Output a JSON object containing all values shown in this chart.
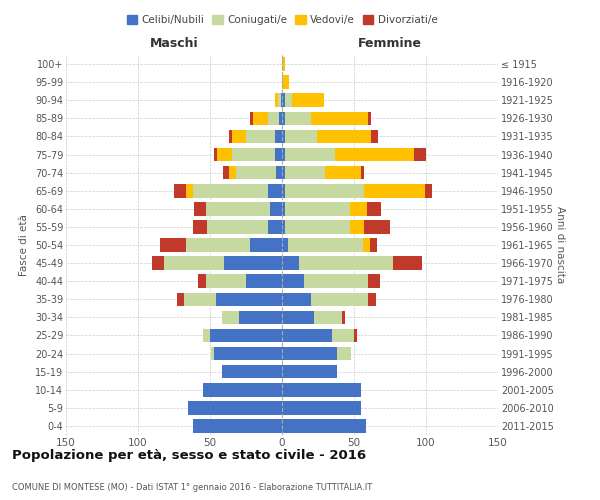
{
  "age_groups": [
    "0-4",
    "5-9",
    "10-14",
    "15-19",
    "20-24",
    "25-29",
    "30-34",
    "35-39",
    "40-44",
    "45-49",
    "50-54",
    "55-59",
    "60-64",
    "65-69",
    "70-74",
    "75-79",
    "80-84",
    "85-89",
    "90-94",
    "95-99",
    "100+"
  ],
  "birth_years": [
    "2011-2015",
    "2006-2010",
    "2001-2005",
    "1996-2000",
    "1991-1995",
    "1986-1990",
    "1981-1985",
    "1976-1980",
    "1971-1975",
    "1966-1970",
    "1961-1965",
    "1956-1960",
    "1951-1955",
    "1946-1950",
    "1941-1945",
    "1936-1940",
    "1931-1935",
    "1926-1930",
    "1921-1925",
    "1916-1920",
    "≤ 1915"
  ],
  "maschi": {
    "celibi": [
      62,
      65,
      55,
      42,
      47,
      50,
      30,
      46,
      25,
      40,
      22,
      10,
      8,
      10,
      4,
      5,
      5,
      2,
      1,
      0,
      0
    ],
    "coniugati": [
      0,
      0,
      0,
      0,
      2,
      5,
      12,
      22,
      28,
      42,
      45,
      42,
      45,
      52,
      28,
      30,
      20,
      8,
      2,
      0,
      0
    ],
    "vedovi": [
      0,
      0,
      0,
      0,
      0,
      0,
      0,
      0,
      0,
      0,
      0,
      0,
      0,
      5,
      5,
      10,
      10,
      10,
      2,
      0,
      0
    ],
    "divorziati": [
      0,
      0,
      0,
      0,
      0,
      0,
      0,
      5,
      5,
      8,
      18,
      10,
      8,
      8,
      4,
      2,
      2,
      2,
      0,
      0,
      0
    ]
  },
  "femmine": {
    "nubili": [
      58,
      55,
      55,
      38,
      38,
      35,
      22,
      20,
      15,
      12,
      4,
      2,
      2,
      2,
      2,
      2,
      2,
      2,
      2,
      0,
      0
    ],
    "coniugate": [
      0,
      0,
      0,
      0,
      10,
      15,
      20,
      40,
      45,
      65,
      52,
      45,
      45,
      55,
      28,
      35,
      22,
      18,
      5,
      0,
      0
    ],
    "vedove": [
      0,
      0,
      0,
      0,
      0,
      0,
      0,
      0,
      0,
      0,
      5,
      10,
      12,
      42,
      25,
      55,
      38,
      40,
      22,
      5,
      2
    ],
    "divorziate": [
      0,
      0,
      0,
      0,
      0,
      2,
      2,
      5,
      8,
      20,
      5,
      18,
      10,
      5,
      2,
      8,
      5,
      2,
      0,
      0,
      0
    ]
  },
  "colors": {
    "celibi": "#4472c4",
    "coniugati": "#c5d9a0",
    "vedovi": "#ffc000",
    "divorziati": "#c0392b"
  },
  "xlim": 150,
  "title": "Popolazione per età, sesso e stato civile - 2016",
  "subtitle": "COMUNE DI MONTESE (MO) - Dati ISTAT 1° gennaio 2016 - Elaborazione TUTTITALIA.IT",
  "ylabel_left": "Fasce di età",
  "ylabel_right": "Anni di nascita",
  "xlabel_left": "Maschi",
  "xlabel_right": "Femmine",
  "bg_color": "#ffffff",
  "grid_color": "#cccccc"
}
